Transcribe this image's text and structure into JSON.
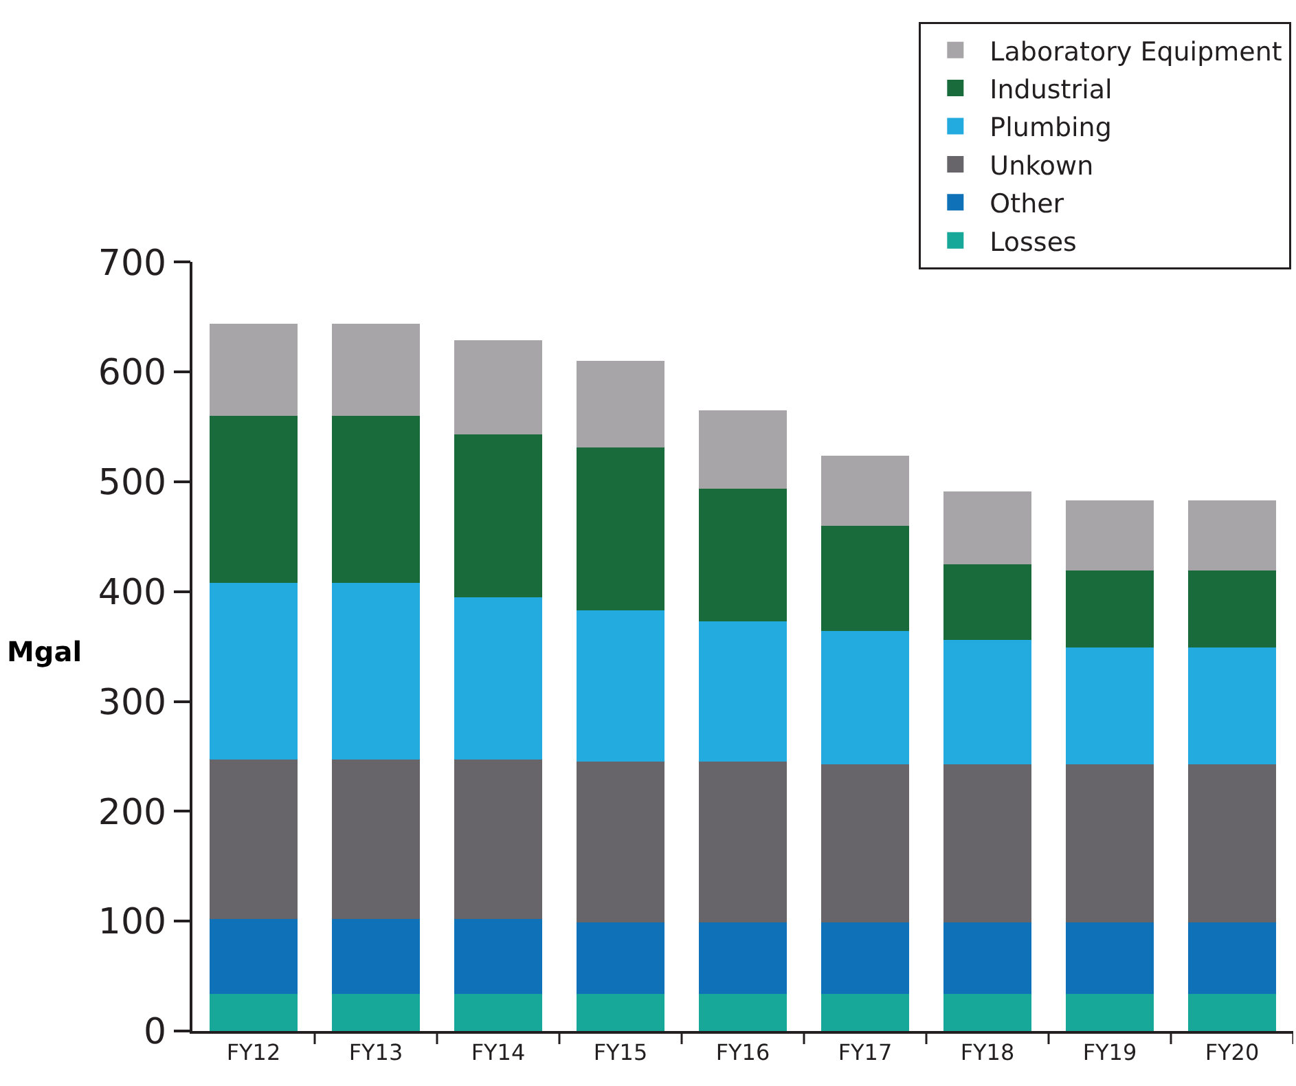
{
  "chart_data": {
    "type": "bar",
    "stacked": true,
    "ylabel": "Mgal",
    "categories": [
      "FY12",
      "FY13",
      "FY14",
      "FY15",
      "FY16",
      "FY17",
      "FY18",
      "FY19",
      "FY20"
    ],
    "series": [
      {
        "name": "Losses",
        "color": "#17a89a",
        "values": [
          34,
          34,
          34,
          34,
          34,
          34,
          34,
          34,
          34
        ]
      },
      {
        "name": "Other",
        "color": "#0f72b8",
        "values": [
          68,
          68,
          68,
          65,
          65,
          65,
          65,
          65,
          65
        ]
      },
      {
        "name": "Unkown",
        "color": "#676569",
        "values": [
          145,
          145,
          145,
          146,
          146,
          144,
          144,
          144,
          144
        ]
      },
      {
        "name": "Plumbing",
        "color": "#23aadf",
        "values": [
          161,
          161,
          148,
          138,
          128,
          121,
          113,
          106,
          106
        ]
      },
      {
        "name": "Industrial",
        "color": "#1a6b3c",
        "values": [
          152,
          152,
          148,
          148,
          121,
          96,
          69,
          70,
          70
        ]
      },
      {
        "name": "Laboratory Equipment",
        "color": "#a7a5a8",
        "values": [
          84,
          84,
          86,
          79,
          71,
          64,
          66,
          64,
          64
        ]
      }
    ],
    "ylim": [
      0,
      700
    ],
    "yticks": [
      0,
      100,
      200,
      300,
      400,
      500,
      600,
      700
    ],
    "grid": false,
    "legend": "top right"
  }
}
